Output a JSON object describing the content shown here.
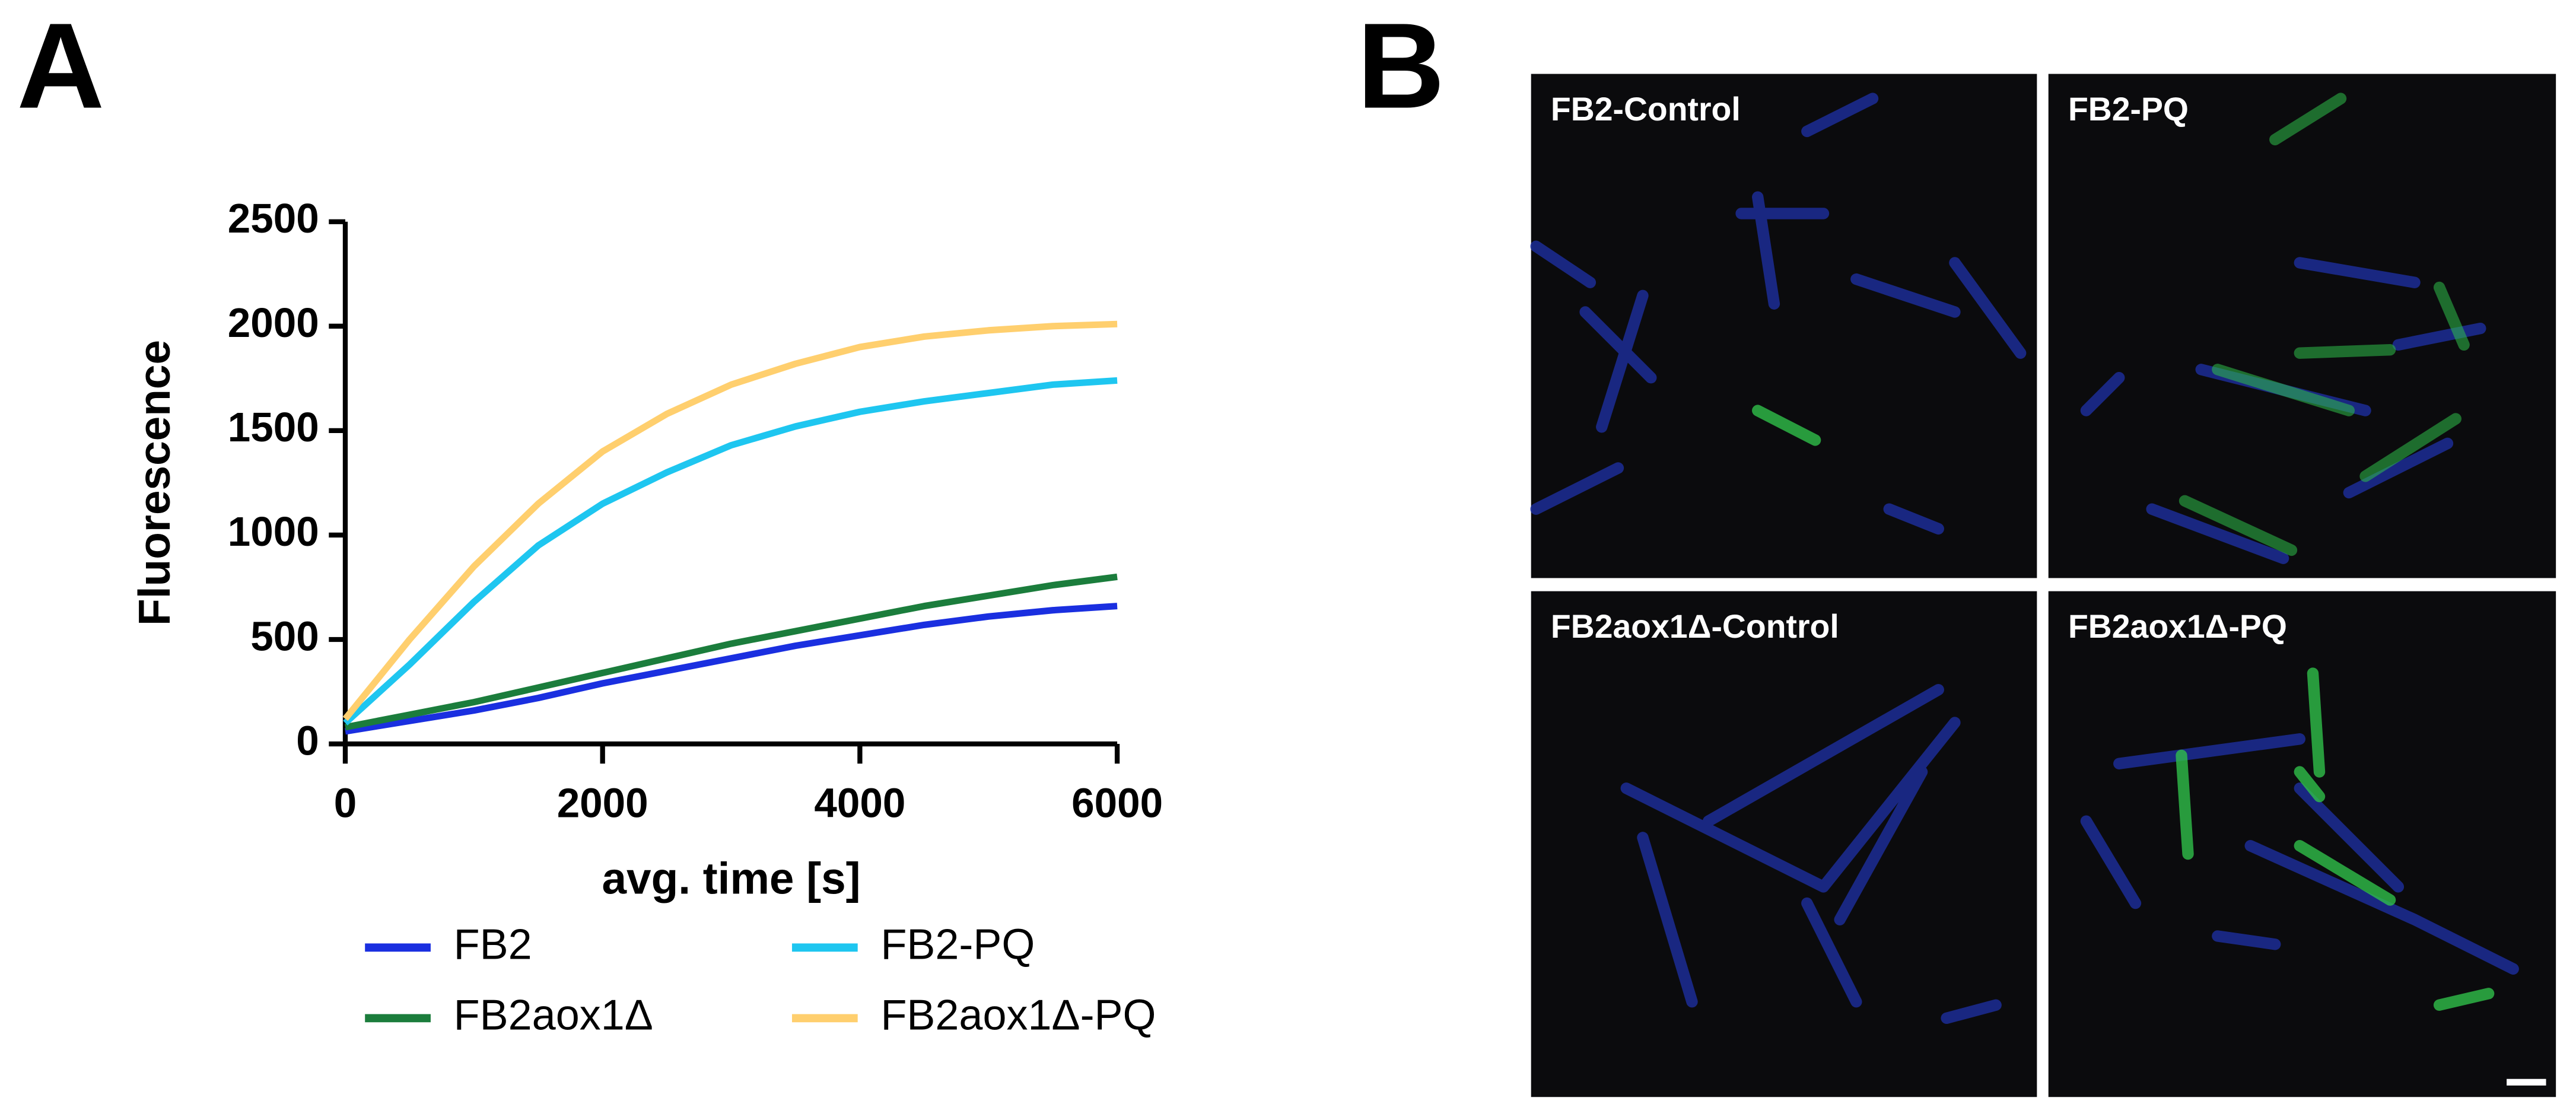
{
  "panel_labels": [
    "A",
    "B"
  ],
  "chart_data": {
    "type": "line",
    "xlabel": "avg. time [s]",
    "ylabel": "Fluorescence",
    "x": [
      0,
      500,
      1000,
      1500,
      2000,
      2500,
      3000,
      3500,
      4000,
      4500,
      5000,
      5500,
      6000
    ],
    "series": [
      {
        "name": "FB2",
        "color": "#1a2fe0",
        "values": [
          60,
          110,
          160,
          220,
          290,
          350,
          410,
          470,
          520,
          570,
          610,
          640,
          660
        ]
      },
      {
        "name": "FB2aox1Δ",
        "color": "#1b7d3c",
        "values": [
          80,
          140,
          200,
          270,
          340,
          410,
          480,
          540,
          600,
          660,
          710,
          760,
          800
        ]
      },
      {
        "name": "FB2-PQ",
        "color": "#1ec6f0",
        "values": [
          100,
          380,
          680,
          950,
          1150,
          1300,
          1430,
          1520,
          1590,
          1640,
          1680,
          1720,
          1740
        ]
      },
      {
        "name": "FB2aox1Δ-PQ",
        "color": "#ffcf6e",
        "values": [
          120,
          500,
          850,
          1150,
          1400,
          1580,
          1720,
          1820,
          1900,
          1950,
          1980,
          2000,
          2010
        ]
      }
    ],
    "xlim": [
      0,
      6000
    ],
    "xticks": [
      0,
      2000,
      4000,
      6000
    ],
    "ylim": [
      0,
      2500
    ],
    "yticks": [
      0,
      500,
      1000,
      1500,
      2000,
      2500
    ],
    "grid": false
  },
  "micrographs": [
    {
      "label": "FB2-Control"
    },
    {
      "label": "FB2-PQ"
    },
    {
      "label": "FB2aox1Δ-Control"
    },
    {
      "label": "FB2aox1Δ-PQ"
    }
  ]
}
